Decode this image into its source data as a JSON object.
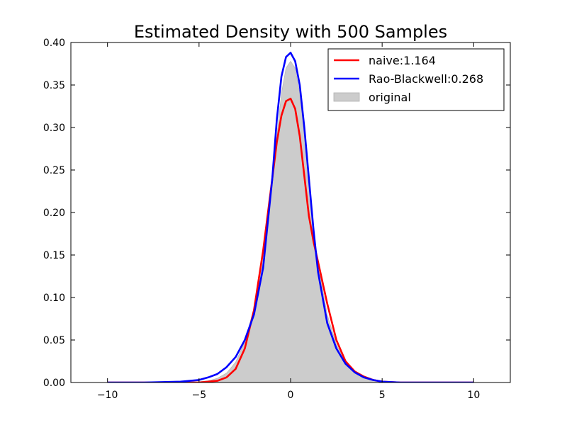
{
  "chart_data": {
    "type": "line",
    "title": "Estimated Density with 500 Samples",
    "xlabel": "",
    "ylabel": "",
    "xlim": [
      -12,
      12
    ],
    "ylim": [
      0,
      0.4
    ],
    "xticks": [
      -10,
      -5,
      0,
      5,
      10
    ],
    "xtick_labels": [
      "−10",
      "−5",
      "0",
      "5",
      "10"
    ],
    "yticks": [
      0,
      0.05,
      0.1,
      0.15,
      0.2,
      0.25,
      0.3,
      0.35,
      0.4
    ],
    "ytick_labels": [
      "0.00",
      "0.05",
      "0.10",
      "0.15",
      "0.20",
      "0.25",
      "0.30",
      "0.35",
      "0.40"
    ],
    "grid": false,
    "legend_position": "top-right",
    "x": [
      -10,
      -8,
      -6,
      -5,
      -4.5,
      -4,
      -3.5,
      -3,
      -2.5,
      -2,
      -1.5,
      -1,
      -0.75,
      -0.5,
      -0.25,
      0,
      0.25,
      0.5,
      0.75,
      1,
      1.25,
      1.5,
      2,
      2.5,
      3,
      3.5,
      4,
      4.5,
      5,
      6,
      8,
      10
    ],
    "series": [
      {
        "name": "naive:1.164",
        "color": "#ff0000",
        "style": "line",
        "values": [
          0,
          0,
          0,
          0,
          0.001,
          0.002,
          0.006,
          0.016,
          0.04,
          0.085,
          0.155,
          0.24,
          0.283,
          0.314,
          0.331,
          0.334,
          0.322,
          0.29,
          0.243,
          0.196,
          0.166,
          0.142,
          0.093,
          0.05,
          0.025,
          0.013,
          0.007,
          0.003,
          0.001,
          0,
          0,
          0
        ]
      },
      {
        "name": "Rao-Blackwell:0.268",
        "color": "#0000ff",
        "style": "line",
        "values": [
          0,
          0,
          0.001,
          0.003,
          0.006,
          0.01,
          0.018,
          0.03,
          0.05,
          0.08,
          0.135,
          0.24,
          0.31,
          0.36,
          0.383,
          0.388,
          0.378,
          0.35,
          0.3,
          0.24,
          0.18,
          0.13,
          0.07,
          0.04,
          0.022,
          0.012,
          0.006,
          0.003,
          0.001,
          0,
          0,
          0
        ]
      },
      {
        "name": "original",
        "color": "#cccccc",
        "style": "area",
        "values": [
          0,
          0,
          0,
          0.001,
          0.002,
          0.005,
          0.011,
          0.024,
          0.048,
          0.088,
          0.15,
          0.235,
          0.29,
          0.34,
          0.37,
          0.378,
          0.37,
          0.34,
          0.29,
          0.235,
          0.18,
          0.14,
          0.08,
          0.045,
          0.024,
          0.011,
          0.005,
          0.002,
          0.001,
          0,
          0,
          0
        ]
      }
    ]
  }
}
